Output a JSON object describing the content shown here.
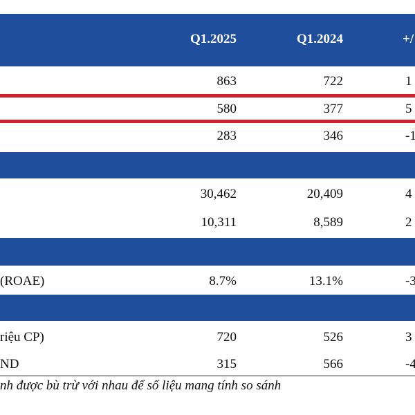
{
  "header": {
    "col1": "Q1.2025",
    "col2": "Q1.2024",
    "col3": "+/"
  },
  "rows_group1": [
    {
      "label": "",
      "c1": "863",
      "c2": "722",
      "c3": "1"
    },
    {
      "label": "",
      "c1": "580",
      "c2": "377",
      "c3": "5"
    },
    {
      "label": "",
      "c1": "283",
      "c2": "346",
      "c3": "-1"
    }
  ],
  "rows_group2": [
    {
      "label": "",
      "c1": "30,462",
      "c2": "20,409",
      "c3": "4"
    },
    {
      "label": "",
      "c1": "10,311",
      "c2": "8,589",
      "c3": "2"
    }
  ],
  "rows_group3": [
    {
      "label": "(ROAE)",
      "c1": "8.7%",
      "c2": "13.1%",
      "c3": "-3"
    }
  ],
  "rows_group4": [
    {
      "label": "riệu CP)",
      "c1": "720",
      "c2": "526",
      "c3": "3"
    },
    {
      "label": "ND",
      "c1": "315",
      "c2": "566",
      "c3": "-4"
    }
  ],
  "footnote": "nh được bù trừ với nhau để số liệu mang tính so sánh",
  "colors": {
    "band": "#1f4e9c",
    "highlight": "#d3202f"
  }
}
